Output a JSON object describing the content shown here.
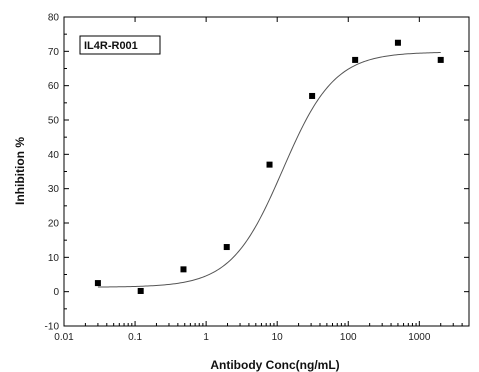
{
  "chart_data": {
    "type": "scatter",
    "title": "",
    "xlabel": "Antibody Conc(ng/mL)",
    "ylabel": "Inhibition %",
    "xscale": "log",
    "xlim": [
      0.01,
      5000
    ],
    "ylim": [
      -10,
      80
    ],
    "x_ticks": [
      0.01,
      0.1,
      1,
      10,
      100,
      1000
    ],
    "x_tick_labels": [
      "0.01",
      "0.1",
      "1",
      "10",
      "100",
      "1000"
    ],
    "y_ticks": [
      -10,
      0,
      10,
      20,
      30,
      40,
      50,
      60,
      70,
      80
    ],
    "y_tick_labels": [
      "-10",
      "0",
      "10",
      "20",
      "30",
      "40",
      "50",
      "60",
      "70",
      "80"
    ],
    "grid": false,
    "legend": {
      "label": "IL4R-R001",
      "placement": "top-left"
    },
    "series": [
      {
        "name": "IL4R-R001",
        "marker": "square",
        "x": [
          0.03,
          0.12,
          0.48,
          1.95,
          7.8,
          31,
          125,
          500,
          2000
        ],
        "y": [
          2.5,
          0.2,
          6.5,
          13,
          37,
          57,
          67.5,
          72.5,
          67.5
        ]
      }
    ],
    "fit": {
      "type": "four-parameter-logistic",
      "bottom": 1.3,
      "top": 69.8,
      "ec50": 12,
      "hill": 1.2
    },
    "colors": {
      "marker": "#000000",
      "curve": "#555555",
      "axis": "#000000"
    }
  }
}
